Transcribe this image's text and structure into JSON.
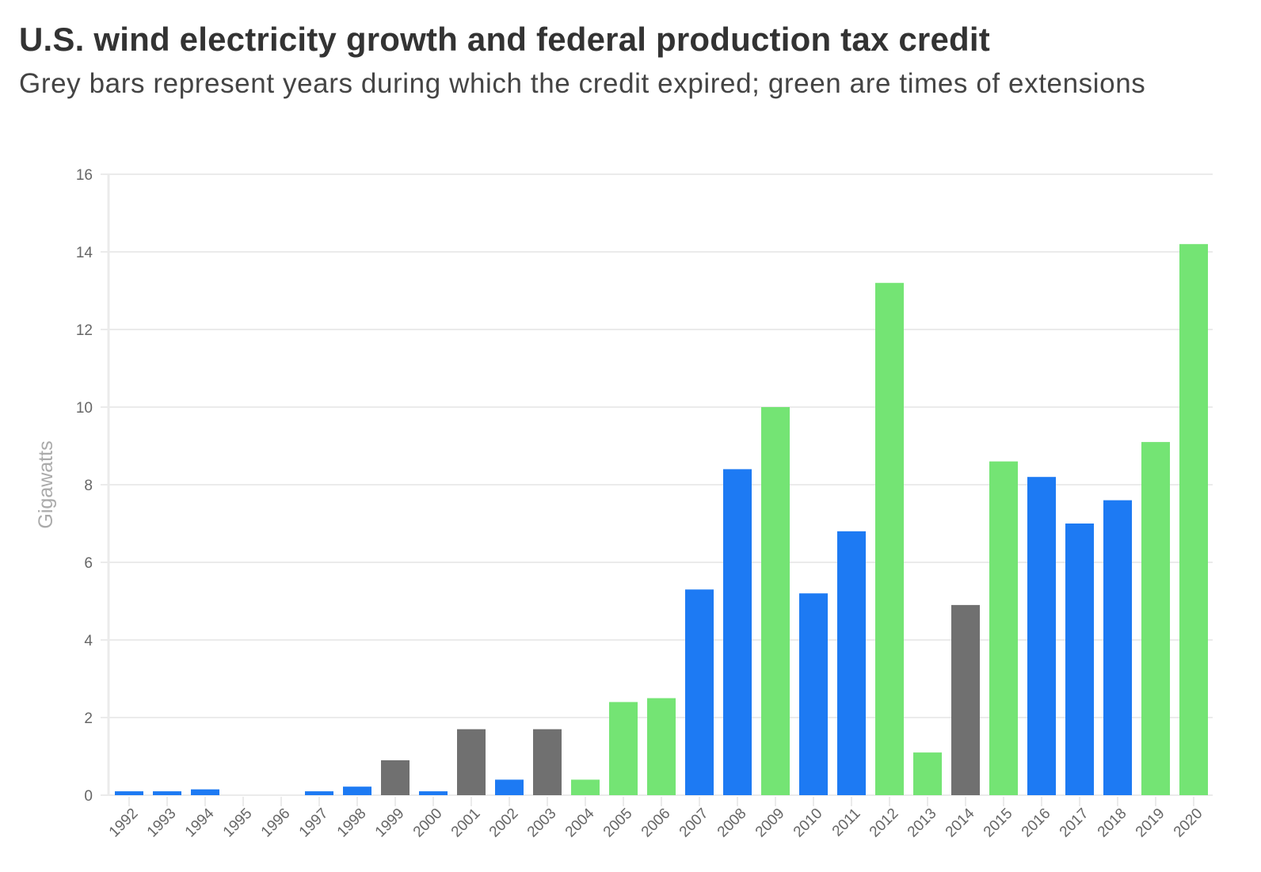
{
  "header": {
    "title": "U.S. wind electricity growth and federal production tax credit",
    "subtitle": "Grey bars represent years during which the credit expired; green are times of extensions"
  },
  "colors": {
    "normal": "#1d7af3",
    "extension": "#74e474",
    "expired": "#707070",
    "grid": "#ebebeb"
  },
  "chart_data": {
    "type": "bar",
    "title": "U.S. wind electricity growth and federal production tax credit",
    "subtitle": "Grey bars represent years during which the credit expired; green are times of extensions",
    "xlabel": "",
    "ylabel": "Gigawatts",
    "ylim": [
      0,
      16
    ],
    "yticks": [
      0,
      2,
      4,
      6,
      8,
      10,
      12,
      14,
      16
    ],
    "grid": true,
    "legend": "none",
    "categories": [
      "1992",
      "1993",
      "1994",
      "1995",
      "1996",
      "1997",
      "1998",
      "1999",
      "2000",
      "2001",
      "2002",
      "2003",
      "2004",
      "2005",
      "2006",
      "2007",
      "2008",
      "2009",
      "2010",
      "2011",
      "2012",
      "2013",
      "2014",
      "2015",
      "2016",
      "2017",
      "2018",
      "2019",
      "2020"
    ],
    "values": [
      0.1,
      0.1,
      0.15,
      0,
      0,
      0.1,
      0.22,
      0.9,
      0.1,
      1.7,
      0.4,
      1.7,
      0.4,
      2.4,
      2.5,
      5.3,
      8.4,
      10.0,
      5.2,
      6.8,
      13.2,
      1.1,
      4.9,
      8.6,
      8.2,
      7.0,
      7.6,
      9.1,
      14.2
    ],
    "status": [
      "normal",
      "normal",
      "normal",
      "normal",
      "normal",
      "normal",
      "normal",
      "expired",
      "normal",
      "expired",
      "normal",
      "expired",
      "extension",
      "extension",
      "extension",
      "normal",
      "normal",
      "extension",
      "normal",
      "normal",
      "extension",
      "extension",
      "expired",
      "extension",
      "normal",
      "normal",
      "normal",
      "extension",
      "extension"
    ]
  }
}
